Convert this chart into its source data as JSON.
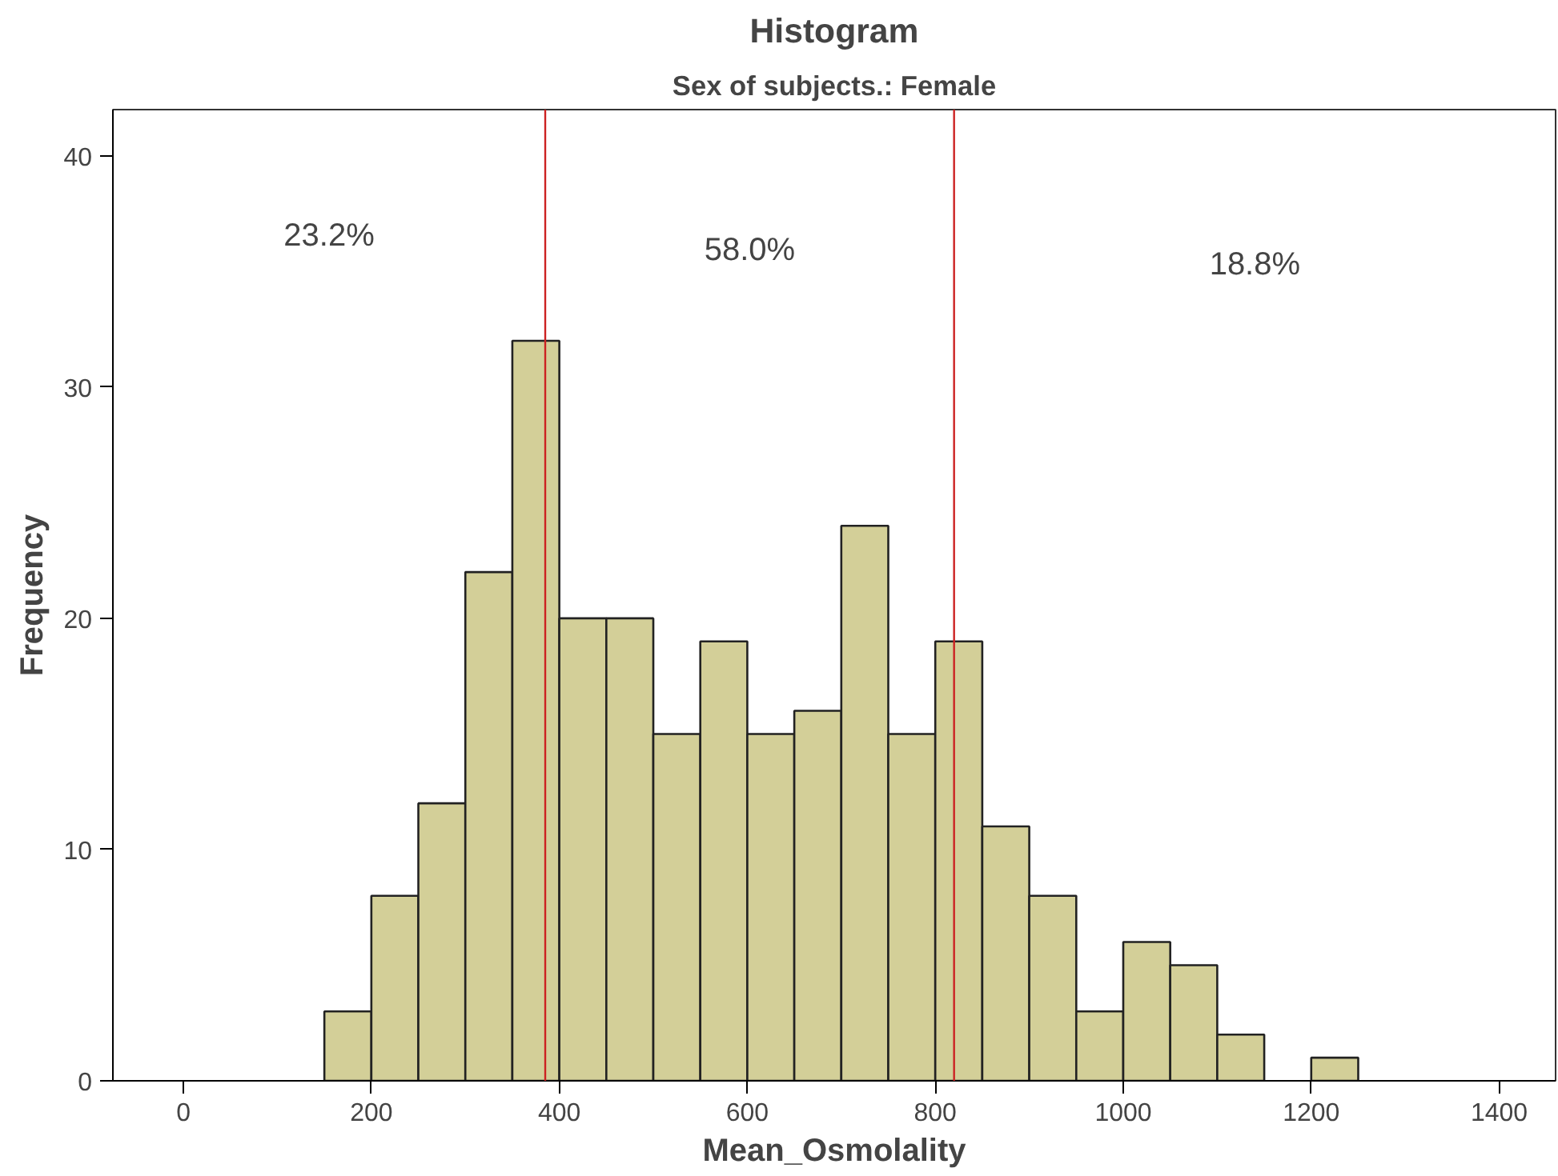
{
  "chart_data": {
    "type": "histogram",
    "title": "Histogram",
    "subtitle": "Sex of subjects.: Female",
    "xlabel": "Mean_Osmolality",
    "ylabel": "Frequency",
    "bins": [
      150,
      200,
      250,
      300,
      350,
      400,
      450,
      500,
      550,
      600,
      650,
      700,
      750,
      800,
      850,
      900,
      950,
      1000,
      1050,
      1100,
      1150,
      1200,
      1250
    ],
    "values": [
      3,
      8,
      12,
      22,
      32,
      20,
      20,
      15,
      19,
      15,
      16,
      24,
      15,
      19,
      11,
      8,
      3,
      6,
      5,
      2,
      0,
      1
    ],
    "color": "#d3cf98",
    "xlim": [
      -75,
      1460
    ],
    "ylim": [
      0,
      42
    ],
    "xticks": [
      0,
      200,
      400,
      600,
      800,
      1000,
      1200,
      1400
    ],
    "yticks": [
      0,
      10,
      20,
      30,
      40
    ],
    "ref_lines": [
      {
        "axis": "x",
        "value": 385,
        "label": null,
        "color": "#cc2222"
      },
      {
        "axis": "x",
        "value": 820,
        "label": null,
        "color": "#cc2222"
      }
    ],
    "annotations": [
      "23.2%",
      "58.0%",
      "18.8%"
    ],
    "grid": false
  }
}
